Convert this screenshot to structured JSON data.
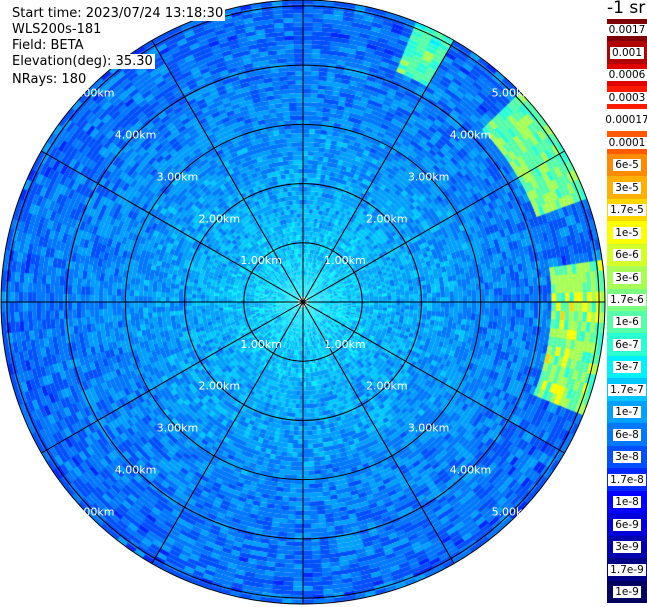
{
  "info": {
    "start_time": "Start time: 2023/07/24 13:18:30",
    "instrument": "WLS200s-181",
    "field": "Field: BETA",
    "elevation": "Elevation(deg): 35.30",
    "nrays": "NRays: 180"
  },
  "colorbar": {
    "unit": "-1 sr",
    "stops": [
      {
        "label": "0.0017",
        "color": "#7f0000"
      },
      {
        "label": "0.001",
        "color": "#b00000"
      },
      {
        "label": "0.0006",
        "color": "#e00000"
      },
      {
        "label": "0.0003",
        "color": "#ff1a00"
      },
      {
        "label": "0.00017",
        "color": "#ffffff"
      },
      {
        "label": "0.0001",
        "color": "#ff5a00"
      },
      {
        "label": "6e-5",
        "color": "#ff8c00"
      },
      {
        "label": "3e-5",
        "color": "#ffb000"
      },
      {
        "label": "1.7e-5",
        "color": "#ffd600"
      },
      {
        "label": "1e-5",
        "color": "#ffff00"
      },
      {
        "label": "6e-6",
        "color": "#d4ff2a"
      },
      {
        "label": "3e-6",
        "color": "#a8ff56"
      },
      {
        "label": "1.7e-6",
        "color": "#7dff82"
      },
      {
        "label": "1e-6",
        "color": "#56ffa8"
      },
      {
        "label": "6e-7",
        "color": "#2affd4"
      },
      {
        "label": "3e-7",
        "color": "#00f0ff"
      },
      {
        "label": "1.7e-7",
        "color": "#00c8ff"
      },
      {
        "label": "1e-7",
        "color": "#00a0ff"
      },
      {
        "label": "6e-8",
        "color": "#0078ff"
      },
      {
        "label": "3e-8",
        "color": "#0050ff"
      },
      {
        "label": "1.7e-8",
        "color": "#0028ff"
      },
      {
        "label": "1e-8",
        "color": "#0000ff"
      },
      {
        "label": "6e-9",
        "color": "#0000d8"
      },
      {
        "label": "3e-9",
        "color": "#0000b0"
      },
      {
        "label": "1.7e-9",
        "color": "#000088"
      },
      {
        "label": "1e-9",
        "color": "#000060"
      }
    ]
  },
  "rings": {
    "labels": [
      "1.00km",
      "2.00km",
      "3.00km",
      "4.00km",
      "5.00km"
    ],
    "range_km": [
      1,
      2,
      3,
      4,
      5
    ],
    "max_range_km": 5.1
  },
  "spokes": {
    "count": 12
  }
}
